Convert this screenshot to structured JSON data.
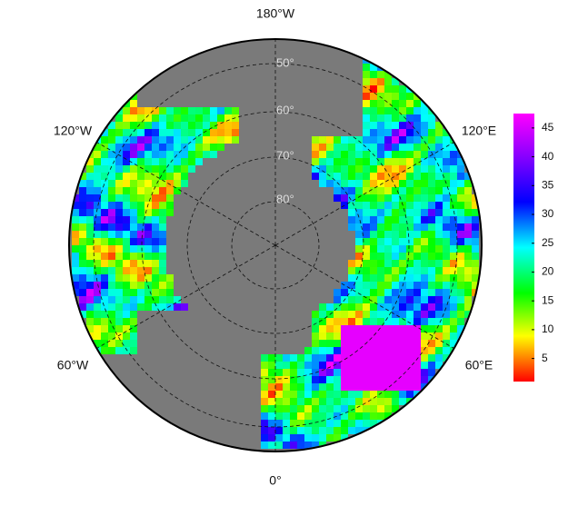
{
  "map": {
    "longitude_labels": [
      "180°W",
      "120°W",
      "120°E",
      "60°W",
      "60°E",
      "0°"
    ],
    "latitude_labels": [
      "50°",
      "60°",
      "70°",
      "80°"
    ]
  },
  "colorbar": {
    "lim": [
      1,
      47.5
    ],
    "ticks": [
      5,
      10,
      15,
      20,
      25,
      30,
      35,
      40,
      45
    ]
  }
}
